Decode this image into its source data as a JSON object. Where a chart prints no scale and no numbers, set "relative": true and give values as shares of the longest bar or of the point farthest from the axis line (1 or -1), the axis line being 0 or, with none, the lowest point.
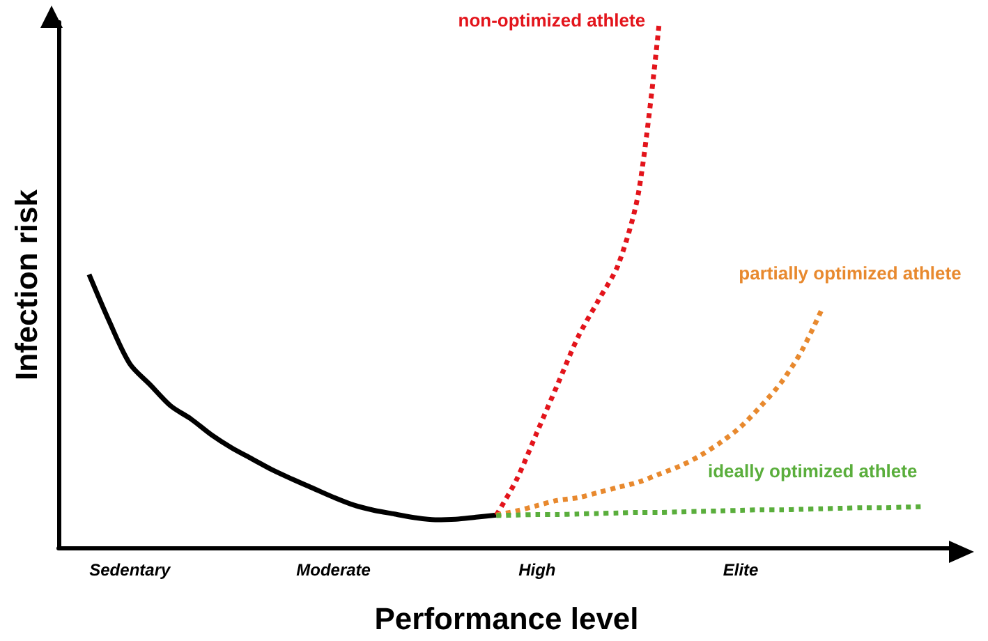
{
  "chart_data": {
    "type": "line",
    "relative": true,
    "xlabel": "Performance level",
    "ylabel": "Infection risk",
    "categories": [
      null,
      null,
      null,
      "Sedentary",
      null,
      null,
      null,
      null,
      null,
      null,
      null,
      null,
      null,
      "Moderate",
      null,
      null,
      null,
      null,
      null,
      null,
      null,
      null,
      null,
      "High",
      null,
      null,
      null,
      null,
      null,
      null,
      null,
      null,
      null,
      "Elite",
      null,
      null,
      null,
      null,
      null,
      null,
      null,
      null,
      null,
      null
    ],
    "grid": false,
    "legend": false,
    "marker": "none",
    "series": [
      {
        "color": "#000000",
        "line_style": "solid",
        "values": [
          null,
          0.52,
          0.43,
          0.35,
          0.31,
          0.27,
          0.245,
          0.215,
          0.19,
          0.169,
          0.148,
          0.13,
          0.113,
          0.096,
          0.081,
          0.071,
          0.064,
          0.057,
          0.053,
          0.054,
          0.058,
          0.062,
          null,
          null,
          null,
          null,
          null,
          null,
          null,
          null,
          null,
          null,
          null,
          null,
          null,
          null,
          null,
          null,
          null,
          null,
          null,
          null,
          null,
          null
        ]
      },
      {
        "name": "non-optimized athlete",
        "color": "#e3141b",
        "line_style": "dotted",
        "values": [
          null,
          null,
          null,
          null,
          null,
          null,
          null,
          null,
          null,
          null,
          null,
          null,
          null,
          null,
          null,
          null,
          null,
          null,
          null,
          null,
          null,
          0.062,
          0.13,
          0.22,
          0.31,
          0.4,
          0.47,
          0.54,
          0.68,
          1.0,
          null,
          null,
          null,
          null,
          null,
          null,
          null,
          null,
          null,
          null,
          null,
          null,
          null,
          null
        ]
      },
      {
        "name": "partially optimized athlete",
        "color": "#e8892e",
        "line_style": "dotted",
        "values": [
          null,
          null,
          null,
          null,
          null,
          null,
          null,
          null,
          null,
          null,
          null,
          null,
          null,
          null,
          null,
          null,
          null,
          null,
          null,
          null,
          null,
          0.062,
          0.07,
          0.08,
          0.09,
          0.095,
          0.105,
          0.115,
          0.125,
          0.14,
          0.155,
          0.175,
          0.2,
          0.23,
          0.27,
          0.315,
          0.375,
          0.455,
          null,
          null,
          null,
          null,
          null,
          null
        ]
      },
      {
        "name": "ideally optimized athlete",
        "color": "#5aae3c",
        "line_style": "dotted",
        "values": [
          null,
          null,
          null,
          null,
          null,
          null,
          null,
          null,
          null,
          null,
          null,
          null,
          null,
          null,
          null,
          null,
          null,
          null,
          null,
          null,
          null,
          0.061,
          0.062,
          0.063,
          0.063,
          0.064,
          0.065,
          0.066,
          0.067,
          0.067,
          0.068,
          0.069,
          0.07,
          0.071,
          0.072,
          0.072,
          0.073,
          0.074,
          0.075,
          0.076,
          0.076,
          0.077,
          0.078,
          null
        ]
      }
    ]
  }
}
